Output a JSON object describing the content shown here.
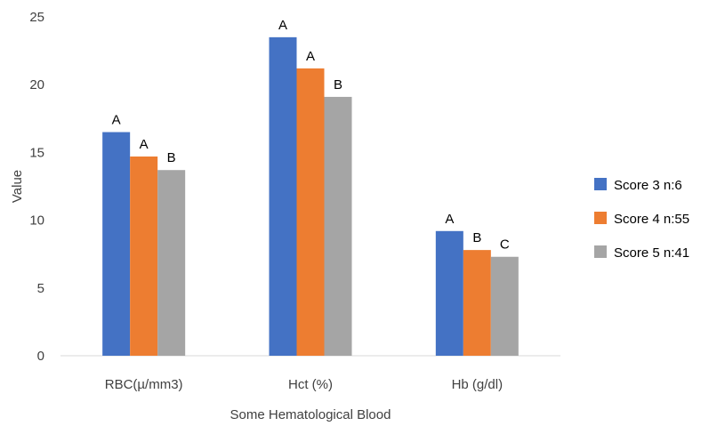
{
  "chart_data": {
    "type": "bar",
    "title": "",
    "xlabel": "Some Hematological Blood",
    "ylabel": "Value",
    "ylim": [
      0,
      25
    ],
    "yticks": [
      0,
      5,
      10,
      15,
      20,
      25
    ],
    "grid": false,
    "legend_position": "right",
    "categories": [
      "RBC(µ/mm3)",
      "Hct (%)",
      "Hb (g/dl)"
    ],
    "series": [
      {
        "name": "Score 3 n:6",
        "color": "#4472C4",
        "values": [
          16.5,
          23.5,
          9.2
        ],
        "labels": [
          "A",
          "A",
          "A"
        ]
      },
      {
        "name": "Score 4 n:55",
        "color": "#ED7D31",
        "values": [
          14.7,
          21.2,
          7.8
        ],
        "labels": [
          "A",
          "A",
          "B"
        ]
      },
      {
        "name": "Score 5 n:41",
        "color": "#A5A5A5",
        "values": [
          13.7,
          19.1,
          7.3
        ],
        "labels": [
          "B",
          "B",
          "C"
        ]
      }
    ]
  }
}
